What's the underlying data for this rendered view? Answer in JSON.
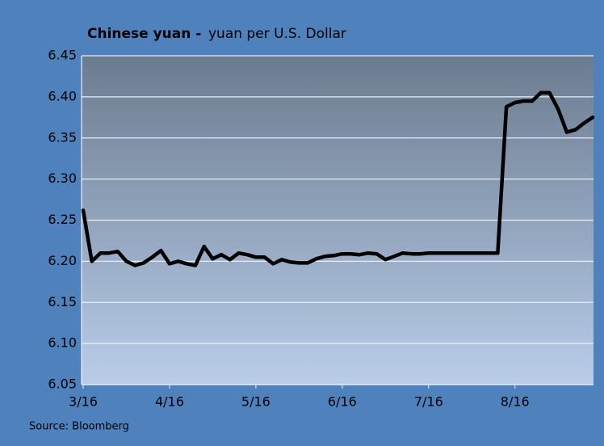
{
  "chart_data": {
    "type": "line",
    "title": "Chinese yuan -",
    "subtitle": "yuan per U.S. Dollar",
    "source": "Source: Bloomberg",
    "categories": [
      "3/16",
      null,
      null,
      null,
      null,
      null,
      null,
      null,
      null,
      null,
      "4/16",
      null,
      null,
      null,
      null,
      null,
      null,
      null,
      null,
      null,
      "5/16",
      null,
      null,
      null,
      null,
      null,
      null,
      null,
      null,
      null,
      "6/16",
      null,
      null,
      null,
      null,
      null,
      null,
      null,
      null,
      null,
      "7/16",
      null,
      null,
      null,
      null,
      null,
      null,
      null,
      null,
      null,
      "8/16",
      null,
      null,
      null,
      null,
      null,
      null,
      null,
      null,
      null
    ],
    "series": [
      {
        "name": "Chinese yuan",
        "color": "#000000",
        "values": [
          6.262,
          6.2,
          6.21,
          6.21,
          6.212,
          6.2,
          6.195,
          6.198,
          6.205,
          6.213,
          6.197,
          6.2,
          6.197,
          6.195,
          6.218,
          6.203,
          6.208,
          6.202,
          6.21,
          6.208,
          6.205,
          6.205,
          6.197,
          6.202,
          6.199,
          6.198,
          6.198,
          6.203,
          6.206,
          6.207,
          6.209,
          6.209,
          6.208,
          6.21,
          6.209,
          6.202,
          6.206,
          6.21,
          6.209,
          6.209,
          6.21,
          6.21,
          6.21,
          6.21,
          6.21,
          6.21,
          6.21,
          6.21,
          6.21,
          6.388,
          6.393,
          6.395,
          6.395,
          6.405,
          6.405,
          6.385,
          6.357,
          6.36,
          6.368,
          6.375
        ]
      }
    ],
    "ylim": [
      6.05,
      6.45
    ],
    "yticks": [
      6.05,
      {
        "value": 6.1,
        "label": "6.10"
      },
      6.15,
      {
        "value": 6.2,
        "label": "6.20"
      },
      6.25,
      {
        "value": 6.3,
        "label": "6.30"
      },
      6.35,
      {
        "value": 6.4,
        "label": "6.40"
      },
      6.45
    ],
    "grid": true
  }
}
